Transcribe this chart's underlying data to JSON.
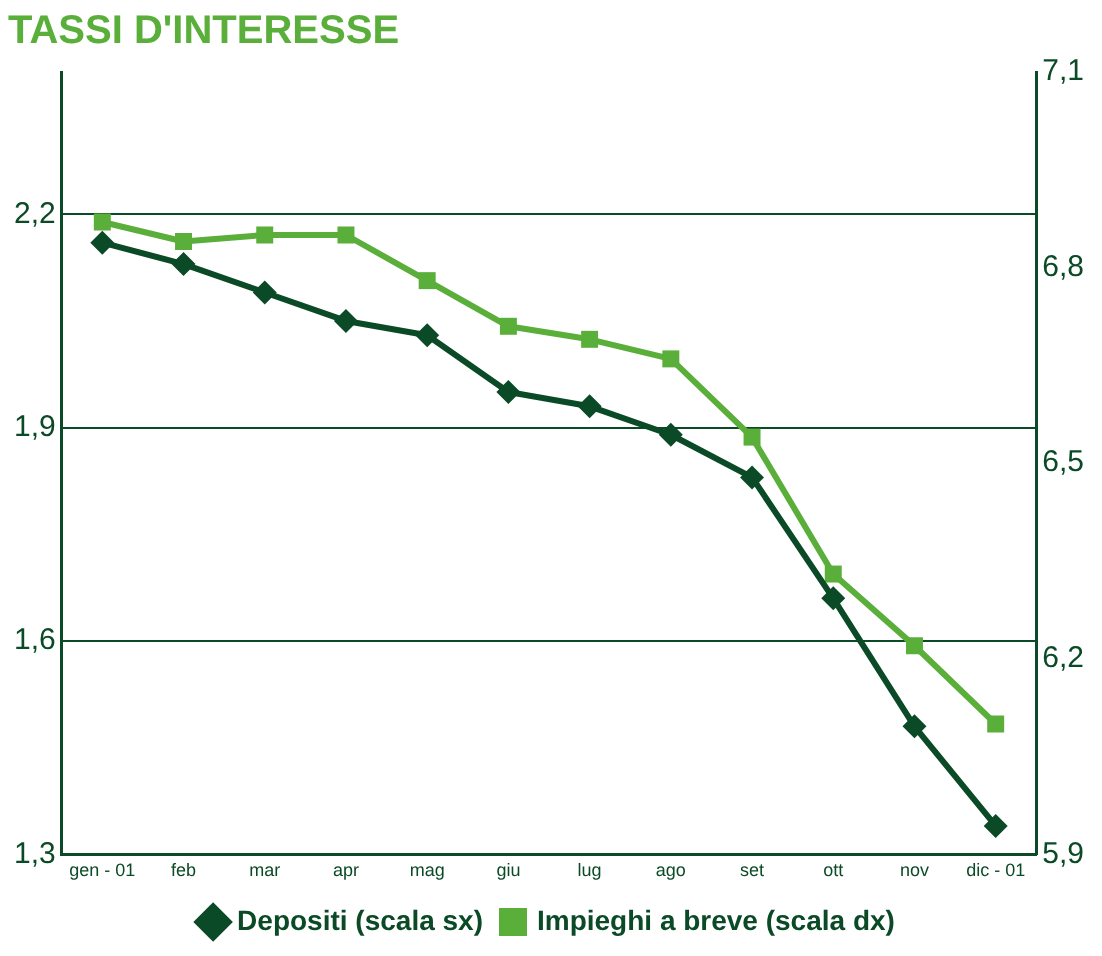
{
  "chart_data": {
    "type": "line",
    "title": "TASSI D'INTERESSE",
    "categories": [
      "gen - 01",
      "feb",
      "mar",
      "apr",
      "mag",
      "giu",
      "lug",
      "ago",
      "set",
      "ott",
      "nov",
      "dic - 01"
    ],
    "series": [
      {
        "name": "Depositi (scala sx)",
        "color": "#0b4a26",
        "marker": "diamond",
        "values": [
          2.16,
          2.13,
          2.09,
          2.05,
          2.03,
          1.95,
          1.93,
          1.89,
          1.83,
          1.66,
          1.48,
          1.34
        ]
      },
      {
        "name": "Impieghi a breve (scala dx)",
        "color": "#5aae3a",
        "marker": "square",
        "axis": "y2",
        "values": [
          6.87,
          6.84,
          6.85,
          6.85,
          6.78,
          6.71,
          6.69,
          6.66,
          6.54,
          6.33,
          6.22,
          6.1
        ]
      }
    ],
    "ylim": [
      1.3,
      2.4
    ],
    "yticks": [
      {
        "value": 1.3,
        "label": "1,3"
      },
      {
        "value": 1.6,
        "label": "1,6"
      },
      {
        "value": 1.9,
        "label": "1,9"
      },
      {
        "value": 2.2,
        "label": "2,2"
      }
    ],
    "y2lim": [
      5.9,
      7.1
    ],
    "y2ticks": [
      {
        "value": 5.9,
        "label": "5,9"
      },
      {
        "value": 6.2,
        "label": "6,2"
      },
      {
        "value": 6.5,
        "label": "6,5"
      },
      {
        "value": 6.8,
        "label": "6,8"
      },
      {
        "value": 7.1,
        "label": "7,1"
      }
    ],
    "grid": "y",
    "legend": "bottom"
  }
}
